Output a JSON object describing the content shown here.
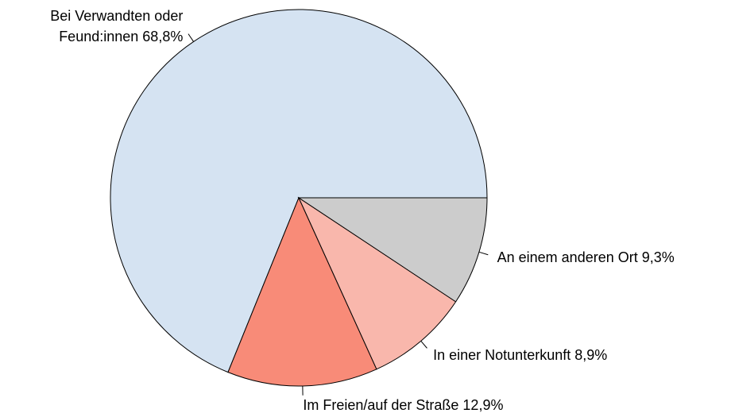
{
  "chart_data": {
    "type": "pie",
    "categories": [
      "Bei Verwandten oder Feund:innen",
      "Im Freien/auf der Straße",
      "In einer Notunterkunft",
      "An einem anderen Ort"
    ],
    "values": [
      68.8,
      12.9,
      8.9,
      9.3
    ],
    "value_labels": [
      "68,8%",
      "12,9%",
      "8,9%",
      "9,3%"
    ],
    "colors": [
      "#d5e3f2",
      "#f88b78",
      "#f9b7ac",
      "#cccccc"
    ]
  }
}
